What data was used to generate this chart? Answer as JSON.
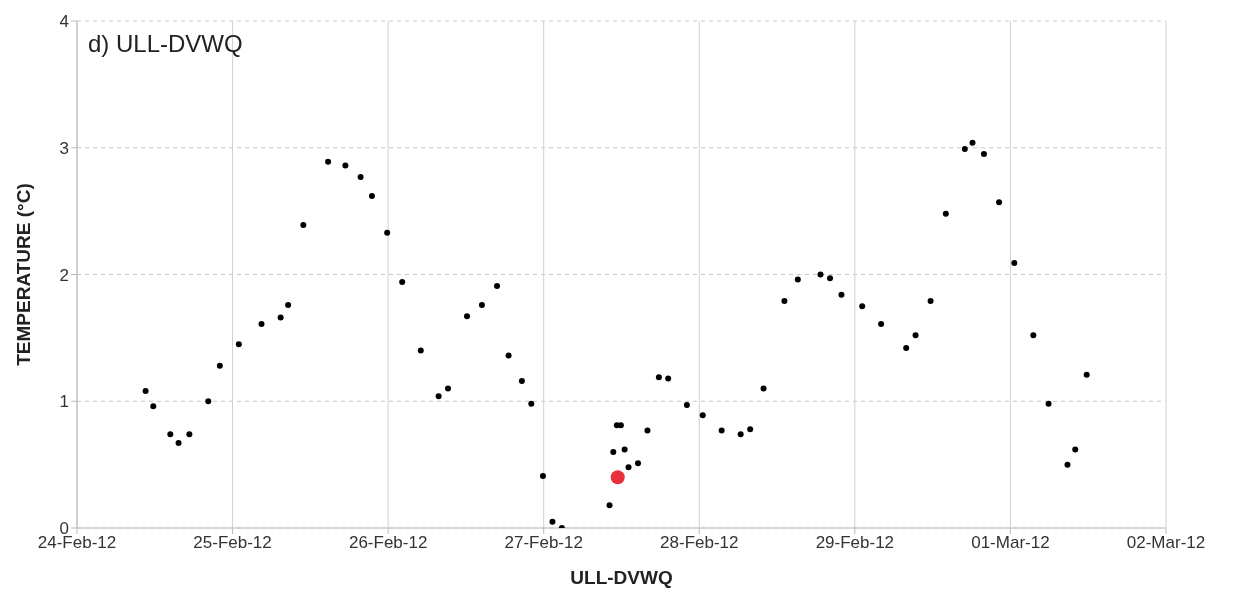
{
  "chart_data": {
    "type": "scatter",
    "title": "d) ULL-DVWQ",
    "xlabel": "ULL-DVWQ",
    "ylabel": "TEMPERATURE (°C)",
    "xlim": [
      "--02-24",
      "--03-02"
    ],
    "xticks": [
      {
        "value": "--02-24",
        "label": "24-Feb-12"
      },
      {
        "value": "--02-25",
        "label": "25-Feb-12"
      },
      {
        "value": "--02-26",
        "label": "26-Feb-12"
      },
      {
        "value": "--02-27",
        "label": "27-Feb-12"
      },
      {
        "value": "--02-28",
        "label": "28-Feb-12"
      },
      {
        "value": "--02-29",
        "label": "29-Feb-12"
      },
      {
        "value": "--03-01",
        "label": "01-Mar-12"
      },
      {
        "value": "--03-02",
        "label": "02-Mar-12"
      }
    ],
    "ylim": [
      0,
      4
    ],
    "yticks": [
      0,
      1,
      2,
      3,
      4
    ],
    "grid": true,
    "marker": "circle",
    "series": [
      {
        "color": "#000000",
        "x": [
          "--02-24T10:35",
          "--02-24T11:46",
          "--02-24T14:24",
          "--02-24T15:40",
          "--02-24T17:20",
          "--02-24T20:15",
          "--02-24T22:02",
          "--02-25T00:58",
          "--02-25T04:28",
          "--02-25T07:25",
          "--02-25T08:34",
          "--02-25T10:55",
          "--02-25T14:44",
          "--02-25T17:24",
          "--02-25T19:45",
          "--02-25T21:30",
          "--02-25T23:51",
          "--02-26T02:10",
          "--02-26T05:02",
          "--02-26T07:47",
          "--02-26T09:14",
          "--02-26T12:10",
          "--02-26T14:28",
          "--02-26T16:48",
          "--02-26T18:35",
          "--02-26T20:38",
          "--02-26T22:05",
          "--02-26T23:53",
          "--02-27T01:21",
          "--02-27T02:48",
          "--02-27T10:09",
          "--02-27T10:44",
          "--02-27T11:17",
          "--02-27T11:54",
          "--02-27T12:29",
          "--02-27T13:05",
          "--02-27T14:33",
          "--02-27T16:00",
          "--02-27T17:46",
          "--02-27T19:12",
          "--02-27T22:05",
          "--02-28T00:32",
          "--02-28T03:27",
          "--02-28T06:23",
          "--02-28T07:51",
          "--02-28T09:55",
          "--02-28T13:08",
          "--02-28T15:12",
          "--02-28T18:42",
          "--02-28T20:10",
          "--02-28T21:56",
          "--02-29T01:08",
          "--02-29T04:03",
          "--02-29T07:55",
          "--02-29T09:22",
          "--02-29T11:41",
          "--02-29T14:02",
          "--02-29T16:58",
          "--02-29T18:09",
          "--02-29T19:55",
          "--02-29T22:15",
          "--03-01T00:36",
          "--03-01T03:32",
          "--03-01T05:53",
          "--03-01T08:48",
          "--03-01T10:00",
          "--03-01T11:46"
        ],
        "values": [
          1.08,
          0.96,
          0.74,
          0.67,
          0.74,
          1.0,
          1.28,
          1.45,
          1.61,
          1.66,
          1.76,
          2.39,
          2.89,
          2.86,
          2.77,
          2.62,
          2.33,
          1.94,
          1.4,
          1.04,
          1.1,
          1.67,
          1.76,
          1.91,
          1.36,
          1.16,
          0.98,
          0.41,
          0.05,
          0.0,
          0.18,
          0.6,
          0.81,
          0.81,
          0.62,
          0.48,
          0.51,
          0.77,
          1.19,
          1.18,
          0.97,
          0.89,
          0.77,
          0.74,
          0.78,
          1.1,
          1.79,
          1.96,
          2.0,
          1.97,
          1.84,
          1.75,
          1.61,
          1.42,
          1.52,
          1.79,
          2.48,
          2.99,
          3.04,
          2.95,
          2.57,
          2.09,
          1.52,
          0.98,
          0.5,
          0.62,
          1.21
        ]
      },
      {
        "color": "#e8303a",
        "x": [
          "--02-27T11:25"
        ],
        "values": [
          0.4
        ]
      }
    ]
  }
}
